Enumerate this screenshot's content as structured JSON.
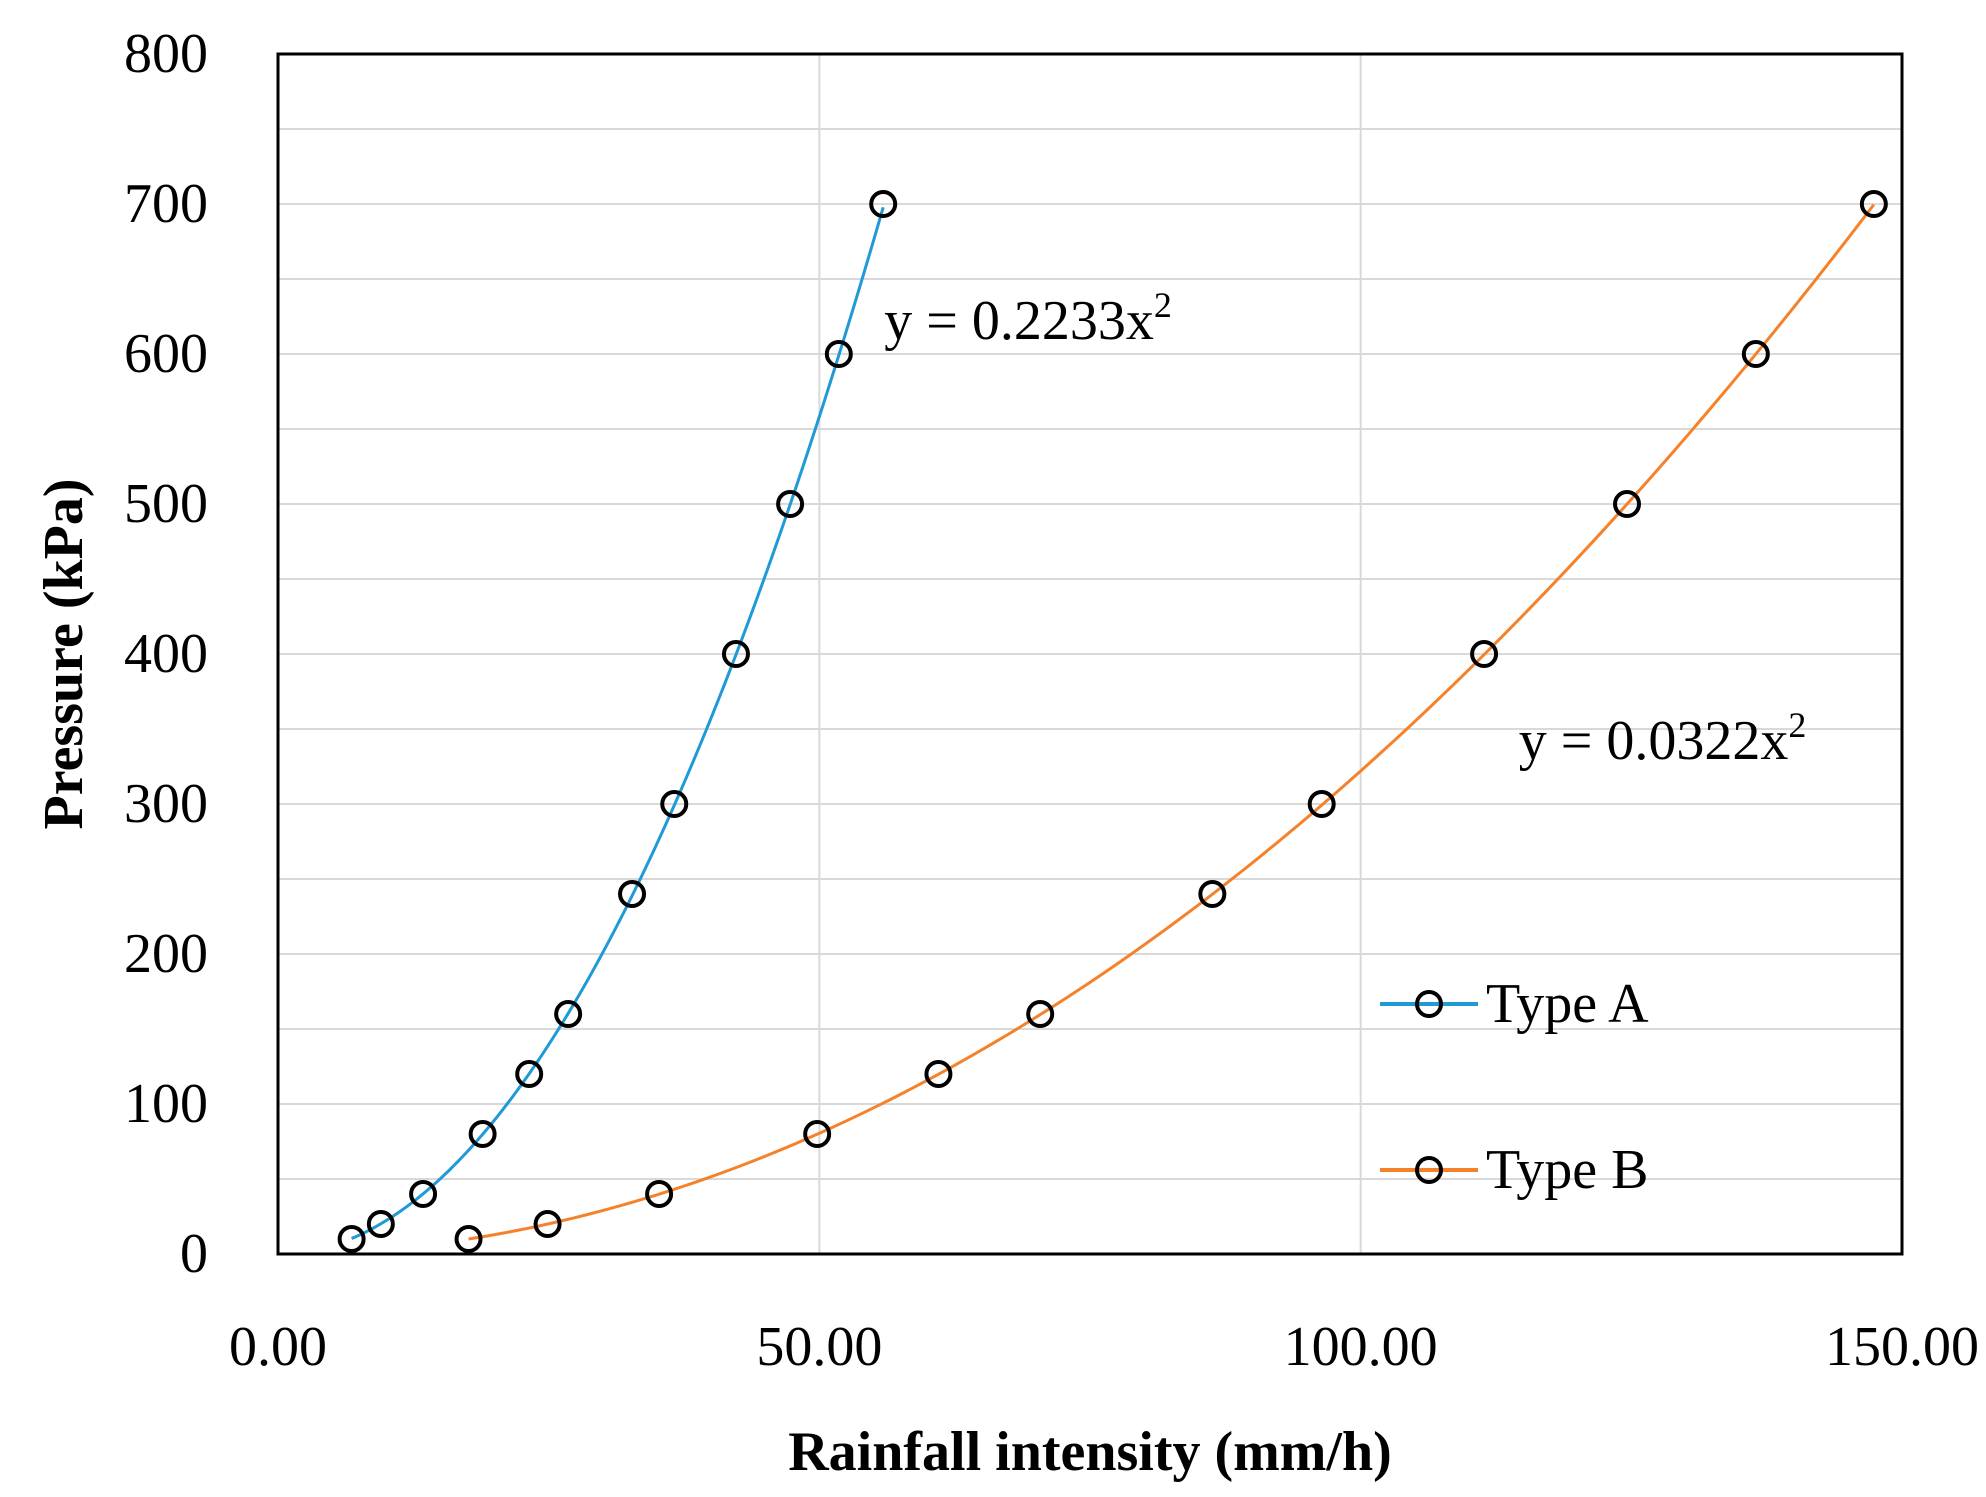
{
  "chart_data": {
    "type": "scatter",
    "title": "",
    "xlabel": "Rainfall intensity (mm/h)",
    "ylabel": "Pressure (kPa)",
    "xlim": [
      0,
      150
    ],
    "ylim": [
      0,
      800
    ],
    "x_ticks": [
      0,
      50,
      100,
      150
    ],
    "x_tick_labels": [
      "0.00",
      "50.00",
      "100.00",
      "150.00"
    ],
    "y_ticks": [
      0,
      100,
      200,
      300,
      400,
      500,
      600,
      700,
      800
    ],
    "y_tick_labels": [
      "0",
      "100",
      "200",
      "300",
      "400",
      "500",
      "600",
      "700",
      "800"
    ],
    "y_minor_step": 50,
    "grid": true,
    "legend_position": "bottom-right",
    "series": [
      {
        "name": "Type A",
        "color": "#1f9ad6",
        "x": [
          6.8,
          9.5,
          13.4,
          18.9,
          23.2,
          26.8,
          32.7,
          36.6,
          42.3,
          47.3,
          51.8,
          55.9
        ],
        "y": [
          10,
          20,
          40,
          80,
          120,
          160,
          240,
          300,
          400,
          500,
          600,
          700
        ],
        "fit_coefficient": 0.2233,
        "equation": "y = 0.2233x",
        "equation_exponent": "2",
        "label_anchor": [
          56,
          610
        ]
      },
      {
        "name": "Type B",
        "color": "#f5822a",
        "x": [
          17.6,
          24.9,
          35.2,
          49.8,
          61.0,
          70.4,
          86.3,
          96.4,
          111.4,
          124.6,
          136.5,
          147.4
        ],
        "y": [
          10,
          20,
          40,
          80,
          120,
          160,
          240,
          300,
          400,
          500,
          600,
          700
        ],
        "fit_coefficient": 0.0322,
        "equation": "y = 0.0322x",
        "equation_exponent": "2",
        "label_anchor": [
          114.6,
          330
        ]
      }
    ]
  }
}
